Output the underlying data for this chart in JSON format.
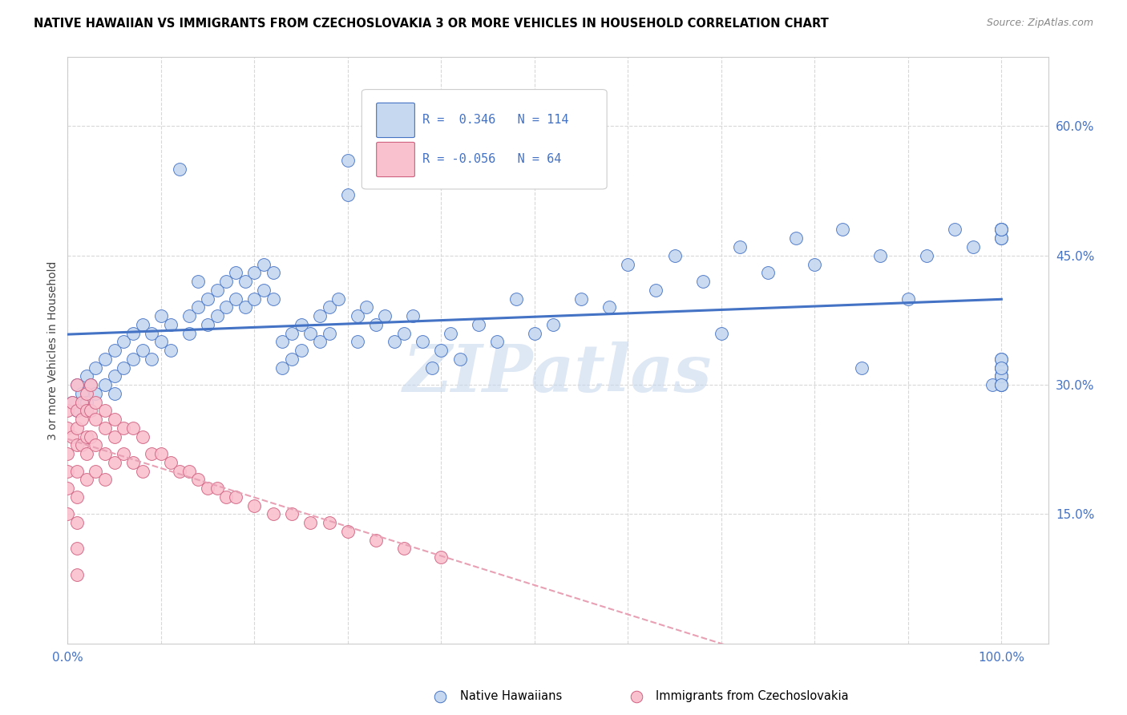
{
  "title": "NATIVE HAWAIIAN VS IMMIGRANTS FROM CZECHOSLOVAKIA 3 OR MORE VEHICLES IN HOUSEHOLD CORRELATION CHART",
  "source": "Source: ZipAtlas.com",
  "ylabel": "3 or more Vehicles in Household",
  "yticks": [
    "60.0%",
    "45.0%",
    "30.0%",
    "15.0%"
  ],
  "ytick_vals": [
    0.6,
    0.45,
    0.3,
    0.15
  ],
  "ylim": [
    0.0,
    0.68
  ],
  "xlim": [
    0.0,
    1.05
  ],
  "watermark": "ZIPatlas",
  "blue_color": "#c5d8f0",
  "pink_color": "#f9c0ce",
  "line_blue": "#4472c4",
  "line_pink": "#e8a0b4",
  "blue_label": "Native Hawaiians",
  "pink_label": "Immigrants from Czechoslovakia",
  "legend_r1_text": "R =  0.346   N = 114",
  "legend_r2_text": "R = -0.056   N = 64",
  "xtick_positions": [
    0.0,
    0.1,
    0.2,
    0.3,
    0.4,
    0.5,
    0.6,
    0.7,
    0.8,
    0.9,
    1.0
  ],
  "blue_x": [
    0.005,
    0.01,
    0.01,
    0.015,
    0.02,
    0.02,
    0.025,
    0.03,
    0.03,
    0.04,
    0.04,
    0.05,
    0.05,
    0.05,
    0.06,
    0.06,
    0.07,
    0.07,
    0.08,
    0.08,
    0.09,
    0.09,
    0.1,
    0.1,
    0.11,
    0.11,
    0.12,
    0.13,
    0.13,
    0.14,
    0.14,
    0.15,
    0.15,
    0.16,
    0.16,
    0.17,
    0.17,
    0.18,
    0.18,
    0.19,
    0.19,
    0.2,
    0.2,
    0.21,
    0.21,
    0.22,
    0.22,
    0.23,
    0.23,
    0.24,
    0.24,
    0.25,
    0.25,
    0.26,
    0.27,
    0.27,
    0.28,
    0.28,
    0.29,
    0.3,
    0.3,
    0.31,
    0.31,
    0.32,
    0.33,
    0.34,
    0.35,
    0.36,
    0.37,
    0.38,
    0.39,
    0.4,
    0.41,
    0.42,
    0.44,
    0.46,
    0.48,
    0.5,
    0.52,
    0.55,
    0.58,
    0.6,
    0.63,
    0.65,
    0.68,
    0.7,
    0.72,
    0.75,
    0.78,
    0.8,
    0.83,
    0.85,
    0.87,
    0.9,
    0.92,
    0.95,
    0.97,
    0.99,
    1.0,
    1.0,
    1.0,
    1.0,
    1.0,
    1.0,
    1.0,
    1.0,
    1.0,
    1.0,
    1.0,
    1.0,
    1.0,
    1.0,
    1.0,
    1.0
  ],
  "blue_y": [
    0.28,
    0.3,
    0.27,
    0.29,
    0.31,
    0.28,
    0.3,
    0.32,
    0.29,
    0.33,
    0.3,
    0.34,
    0.31,
    0.29,
    0.35,
    0.32,
    0.36,
    0.33,
    0.37,
    0.34,
    0.36,
    0.33,
    0.38,
    0.35,
    0.37,
    0.34,
    0.55,
    0.38,
    0.36,
    0.42,
    0.39,
    0.4,
    0.37,
    0.41,
    0.38,
    0.42,
    0.39,
    0.43,
    0.4,
    0.42,
    0.39,
    0.43,
    0.4,
    0.44,
    0.41,
    0.43,
    0.4,
    0.35,
    0.32,
    0.36,
    0.33,
    0.37,
    0.34,
    0.36,
    0.38,
    0.35,
    0.39,
    0.36,
    0.4,
    0.56,
    0.52,
    0.38,
    0.35,
    0.39,
    0.37,
    0.38,
    0.35,
    0.36,
    0.38,
    0.35,
    0.32,
    0.34,
    0.36,
    0.33,
    0.37,
    0.35,
    0.4,
    0.36,
    0.37,
    0.4,
    0.39,
    0.44,
    0.41,
    0.45,
    0.42,
    0.36,
    0.46,
    0.43,
    0.47,
    0.44,
    0.48,
    0.32,
    0.45,
    0.4,
    0.45,
    0.48,
    0.46,
    0.3,
    0.32,
    0.47,
    0.31,
    0.48,
    0.3,
    0.33,
    0.32,
    0.31,
    0.47,
    0.48,
    0.3,
    0.33,
    0.31,
    0.48,
    0.32,
    0.3
  ],
  "pink_x": [
    0.0,
    0.0,
    0.0,
    0.0,
    0.0,
    0.0,
    0.005,
    0.005,
    0.01,
    0.01,
    0.01,
    0.01,
    0.01,
    0.01,
    0.01,
    0.01,
    0.01,
    0.015,
    0.015,
    0.015,
    0.02,
    0.02,
    0.02,
    0.02,
    0.02,
    0.025,
    0.025,
    0.025,
    0.03,
    0.03,
    0.03,
    0.03,
    0.04,
    0.04,
    0.04,
    0.04,
    0.05,
    0.05,
    0.05,
    0.06,
    0.06,
    0.07,
    0.07,
    0.08,
    0.08,
    0.09,
    0.1,
    0.11,
    0.12,
    0.13,
    0.14,
    0.15,
    0.16,
    0.17,
    0.18,
    0.2,
    0.22,
    0.24,
    0.26,
    0.28,
    0.3,
    0.33,
    0.36,
    0.4
  ],
  "pink_y": [
    0.27,
    0.25,
    0.22,
    0.2,
    0.18,
    0.15,
    0.28,
    0.24,
    0.3,
    0.27,
    0.25,
    0.23,
    0.2,
    0.17,
    0.14,
    0.11,
    0.08,
    0.28,
    0.26,
    0.23,
    0.29,
    0.27,
    0.24,
    0.22,
    0.19,
    0.3,
    0.27,
    0.24,
    0.28,
    0.26,
    0.23,
    0.2,
    0.27,
    0.25,
    0.22,
    0.19,
    0.26,
    0.24,
    0.21,
    0.25,
    0.22,
    0.25,
    0.21,
    0.24,
    0.2,
    0.22,
    0.22,
    0.21,
    0.2,
    0.2,
    0.19,
    0.18,
    0.18,
    0.17,
    0.17,
    0.16,
    0.15,
    0.15,
    0.14,
    0.14,
    0.13,
    0.12,
    0.11,
    0.1
  ]
}
